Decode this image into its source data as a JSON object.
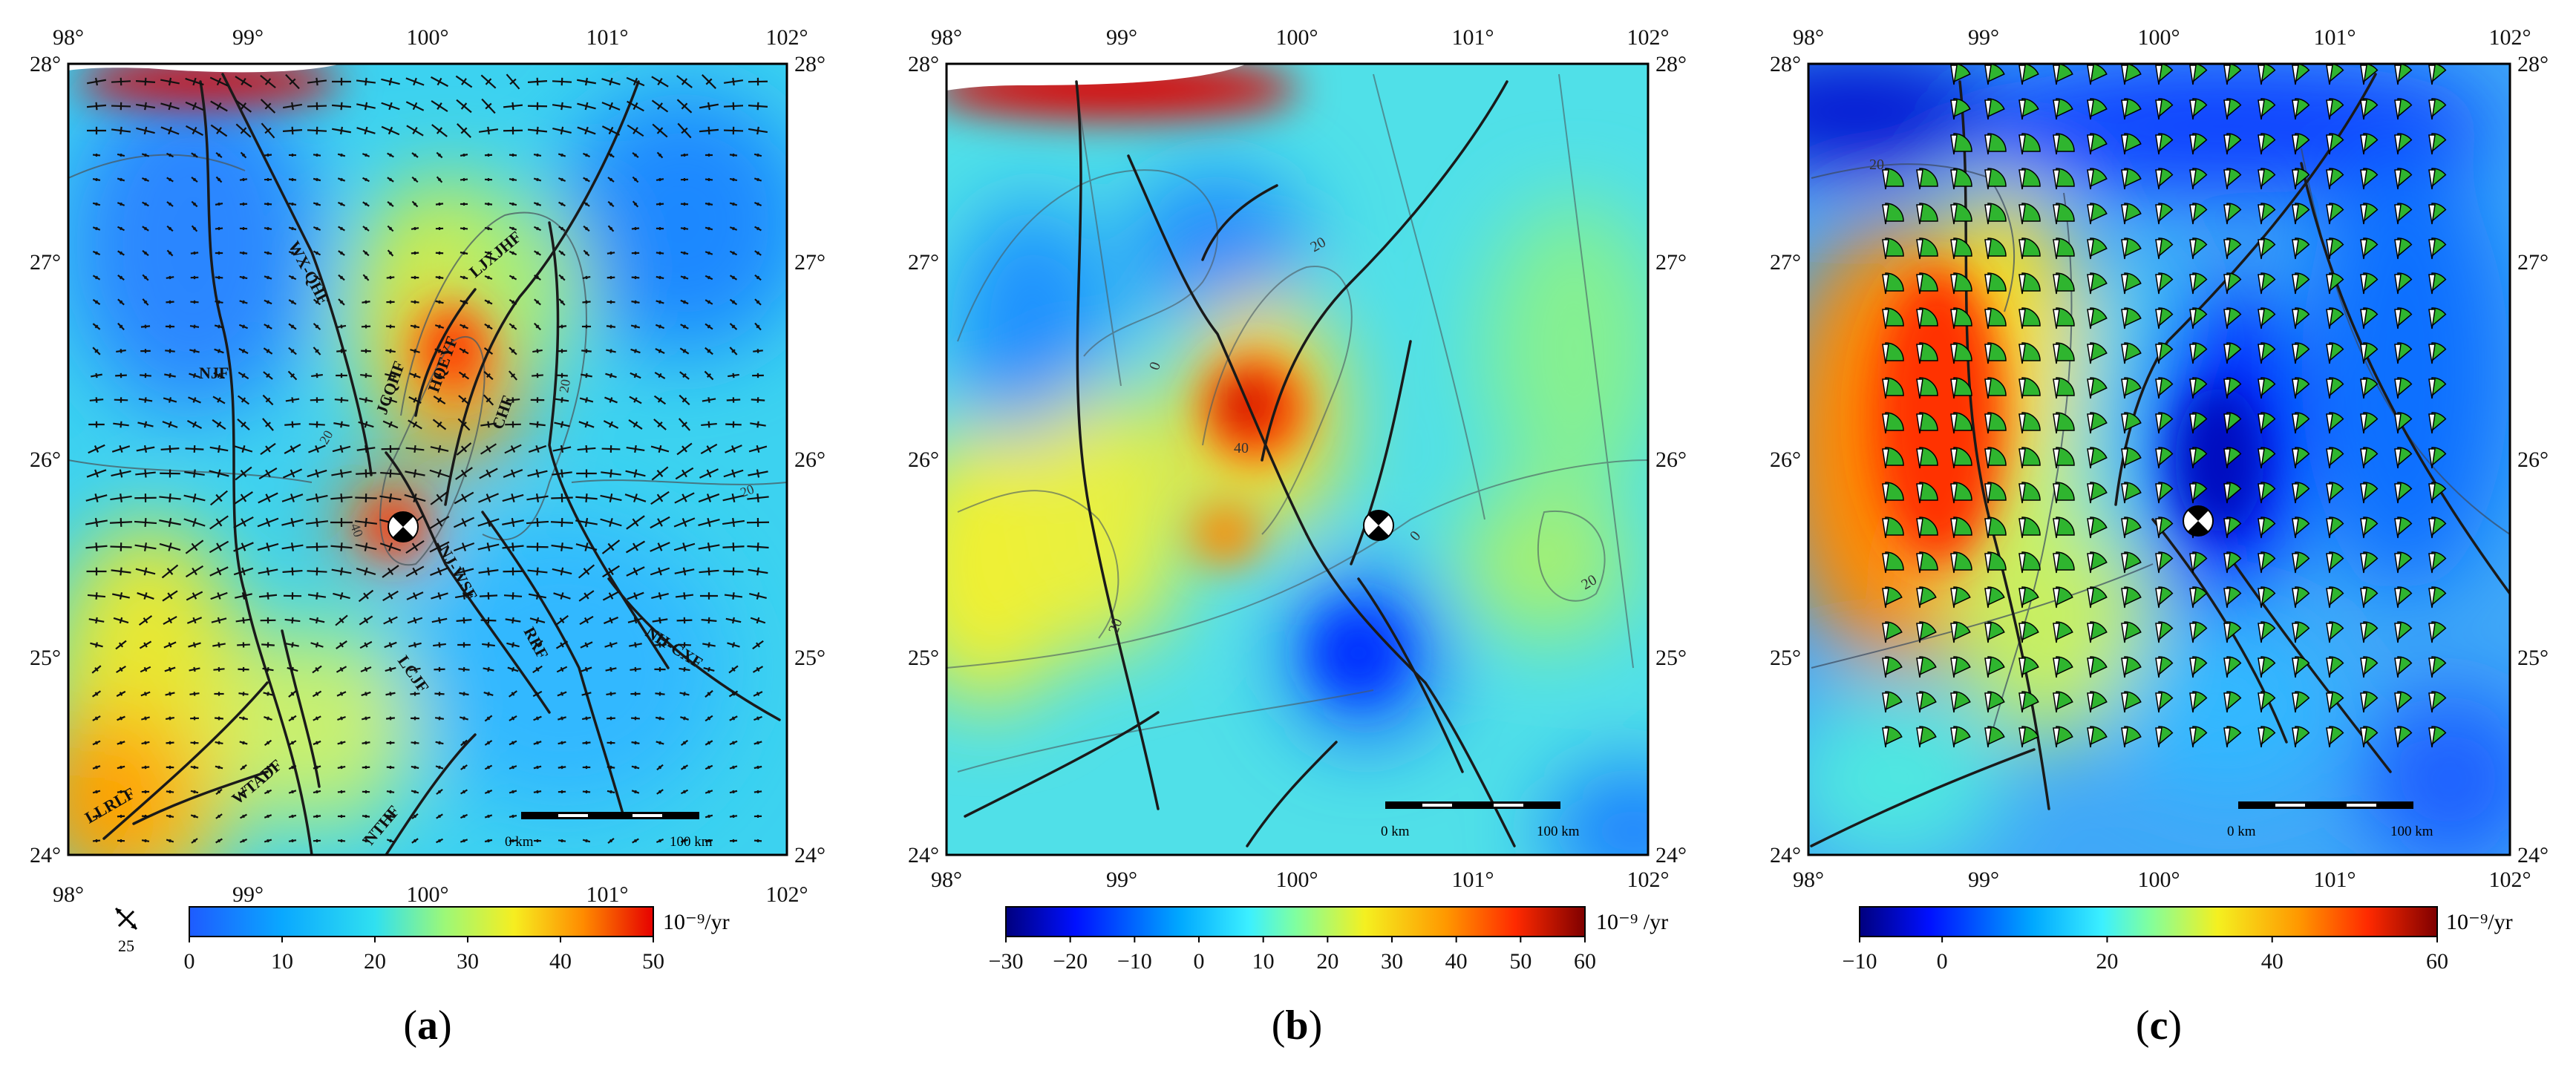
{
  "panels": [
    {
      "id": "a",
      "caption": "(a)",
      "caption_letter": "a",
      "lon_ticks": [
        "98°",
        "99°",
        "100°",
        "101°",
        "102°"
      ],
      "lat_ticks": [
        "28°",
        "27°",
        "26°",
        "25°",
        "24°"
      ],
      "colorbar": {
        "ticks": [
          "0",
          "10",
          "20",
          "30",
          "40",
          "50"
        ],
        "unit": "10⁻⁹/yr",
        "range": [
          0,
          50
        ]
      },
      "scale_bar": {
        "start": "0 km",
        "end": "100 km"
      },
      "strain_legend_value": "25",
      "fault_labels": [
        "WX-QHF",
        "LJXJHF",
        "NJF",
        "JCQHF",
        "HQEYF",
        "CHF",
        "NJ-WSF",
        "RRF",
        "NH-CXF",
        "LCJF",
        "WTADF",
        "NTHF",
        "LLRLF"
      ],
      "contour_labels": [
        "20",
        "40",
        "20",
        "20"
      ]
    },
    {
      "id": "b",
      "caption": "(b)",
      "caption_letter": "b",
      "lon_ticks": [
        "98°",
        "99°",
        "100°",
        "101°",
        "102°"
      ],
      "lat_ticks": [
        "28°",
        "27°",
        "26°",
        "25°",
        "24°"
      ],
      "colorbar": {
        "ticks": [
          "−30",
          "−20",
          "−10",
          "0",
          "10",
          "20",
          "30",
          "40",
          "50",
          "60"
        ],
        "unit": "10⁻⁹ /yr",
        "range": [
          -30,
          60
        ]
      },
      "scale_bar": {
        "start": "0 km",
        "end": "100 km"
      },
      "contour_labels": [
        "20",
        "0",
        "40",
        "0",
        "20",
        "20"
      ]
    },
    {
      "id": "c",
      "caption": "(c)",
      "caption_letter": "c",
      "lon_ticks": [
        "98°",
        "99°",
        "100°",
        "101°",
        "102°"
      ],
      "lat_ticks": [
        "28°",
        "27°",
        "26°",
        "25°",
        "24°"
      ],
      "colorbar": {
        "ticks": [
          "−10",
          "0",
          "20",
          "40",
          "60"
        ],
        "unit": "10⁻⁹/yr",
        "range": [
          -10,
          60
        ]
      },
      "scale_bar": {
        "start": "0 km",
        "end": "100 km"
      },
      "contour_labels": [
        "20"
      ]
    }
  ]
}
